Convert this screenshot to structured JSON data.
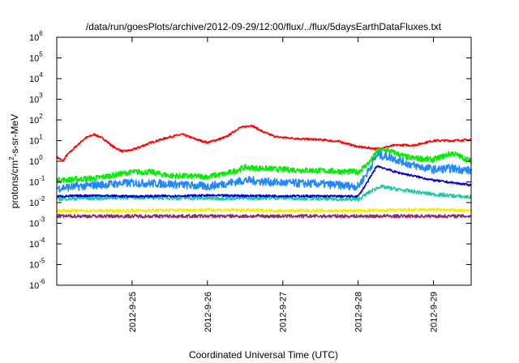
{
  "chart_data": {
    "type": "line",
    "title": "/data/run/goesPlots/archive/2012-09-29/12:00/flux/../flux/5daysEarthDataFluxes.txt",
    "xlabel": "Coordinated Universal Time (UTC)",
    "ylabel_parts": {
      "pre": "protons/cm",
      "sup": "2",
      "post": "-s-sr-MeV"
    },
    "y_scale": "log",
    "ylim": [
      1e-06,
      1000000.0
    ],
    "y_ticks": [
      {
        "base": "10",
        "exp": "-6",
        "value": 1e-06
      },
      {
        "base": "10",
        "exp": "-5",
        "value": 1e-05
      },
      {
        "base": "10",
        "exp": "-4",
        "value": 0.0001
      },
      {
        "base": "10",
        "exp": "-3",
        "value": 0.001
      },
      {
        "base": "10",
        "exp": "-2",
        "value": 0.01
      },
      {
        "base": "10",
        "exp": "-1",
        "value": 0.1
      },
      {
        "base": "10",
        "exp": "0",
        "value": 1
      },
      {
        "base": "10",
        "exp": "1",
        "value": 10
      },
      {
        "base": "10",
        "exp": "2",
        "value": 100
      },
      {
        "base": "10",
        "exp": "3",
        "value": 1000
      },
      {
        "base": "10",
        "exp": "4",
        "value": 10000
      },
      {
        "base": "10",
        "exp": "5",
        "value": 100000
      },
      {
        "base": "10",
        "exp": "6",
        "value": 1000000
      }
    ],
    "xlim": [
      "2012-09-24 00:00",
      "2012-09-29 12:00"
    ],
    "x_ticks": [
      "2012-9-25",
      "2012-9-26",
      "2012-9-27",
      "2012-9-28",
      "2012-9-29"
    ],
    "grid": false,
    "series": [
      {
        "color": "#ff0000",
        "noise": 0.05,
        "points": [
          [
            "2012-09-24 00:00",
            1.6
          ],
          [
            "2012-09-24 02:00",
            1.0
          ],
          [
            "2012-09-24 03:00",
            1.8
          ],
          [
            "2012-09-24 06:00",
            5
          ],
          [
            "2012-09-24 09:00",
            13
          ],
          [
            "2012-09-24 12:00",
            20
          ],
          [
            "2012-09-24 15:00",
            12
          ],
          [
            "2012-09-24 18:00",
            5
          ],
          [
            "2012-09-24 21:00",
            3
          ],
          [
            "2012-09-25 00:00",
            3.5
          ],
          [
            "2012-09-25 06:00",
            8
          ],
          [
            "2012-09-25 12:00",
            15
          ],
          [
            "2012-09-25 16:00",
            20
          ],
          [
            "2012-09-25 20:00",
            12
          ],
          [
            "2012-09-26 00:00",
            8
          ],
          [
            "2012-09-26 06:00",
            15
          ],
          [
            "2012-09-26 10:00",
            40
          ],
          [
            "2012-09-26 14:00",
            55
          ],
          [
            "2012-09-26 18:00",
            25
          ],
          [
            "2012-09-26 22:00",
            15
          ],
          [
            "2012-09-27 06:00",
            12
          ],
          [
            "2012-09-27 12:00",
            11
          ],
          [
            "2012-09-27 18:00",
            9
          ],
          [
            "2012-09-28 00:00",
            5
          ],
          [
            "2012-09-28 06:00",
            4
          ],
          [
            "2012-09-28 12:00",
            6
          ],
          [
            "2012-09-28 18:00",
            6
          ],
          [
            "2012-09-29 00:00",
            10
          ],
          [
            "2012-09-29 06:00",
            10
          ],
          [
            "2012-09-29 12:00",
            11
          ]
        ]
      },
      {
        "color": "#00ee00",
        "noise": 0.14,
        "points": [
          [
            "2012-09-24 00:00",
            0.12
          ],
          [
            "2012-09-24 12:00",
            0.15
          ],
          [
            "2012-09-25 00:00",
            0.3
          ],
          [
            "2012-09-25 06:00",
            0.3
          ],
          [
            "2012-09-25 12:00",
            0.2
          ],
          [
            "2012-09-26 00:00",
            0.18
          ],
          [
            "2012-09-26 06:00",
            0.25
          ],
          [
            "2012-09-26 12:00",
            0.5
          ],
          [
            "2012-09-27 00:00",
            0.4
          ],
          [
            "2012-09-27 12:00",
            0.35
          ],
          [
            "2012-09-28 00:00",
            0.3
          ],
          [
            "2012-09-28 04:00",
            1.0
          ],
          [
            "2012-09-28 06:00",
            3
          ],
          [
            "2012-09-28 09:00",
            3.5
          ],
          [
            "2012-09-28 16:00",
            1.5
          ],
          [
            "2012-09-29 00:00",
            1.2
          ],
          [
            "2012-09-29 06:00",
            2.5
          ],
          [
            "2012-09-29 12:00",
            1.0
          ]
        ]
      },
      {
        "color": "#2288ff",
        "noise": 0.2,
        "points": [
          [
            "2012-09-24 00:00",
            0.05
          ],
          [
            "2012-09-24 12:00",
            0.07
          ],
          [
            "2012-09-25 00:00",
            0.09
          ],
          [
            "2012-09-25 12:00",
            0.08
          ],
          [
            "2012-09-26 00:00",
            0.06
          ],
          [
            "2012-09-26 12:00",
            0.12
          ],
          [
            "2012-09-27 00:00",
            0.09
          ],
          [
            "2012-09-27 12:00",
            0.08
          ],
          [
            "2012-09-28 00:00",
            0.06
          ],
          [
            "2012-09-28 03:00",
            0.3
          ],
          [
            "2012-09-28 06:00",
            2.0
          ],
          [
            "2012-09-28 10:00",
            1.6
          ],
          [
            "2012-09-28 18:00",
            0.6
          ],
          [
            "2012-09-29 00:00",
            0.4
          ],
          [
            "2012-09-29 06:00",
            0.45
          ],
          [
            "2012-09-29 12:00",
            0.35
          ]
        ]
      },
      {
        "color": "#1fc8a8",
        "noise": 0.09,
        "points": [
          [
            "2012-09-24 00:00",
            0.015
          ],
          [
            "2012-09-25 00:00",
            0.018
          ],
          [
            "2012-09-26 00:00",
            0.016
          ],
          [
            "2012-09-27 00:00",
            0.017
          ],
          [
            "2012-09-28 00:00",
            0.014
          ],
          [
            "2012-09-28 04:00",
            0.035
          ],
          [
            "2012-09-28 07:00",
            0.06
          ],
          [
            "2012-09-28 14:00",
            0.04
          ],
          [
            "2012-09-29 00:00",
            0.025
          ],
          [
            "2012-09-29 12:00",
            0.018
          ]
        ]
      },
      {
        "color": "#0000cc",
        "noise": 0.05,
        "points": [
          [
            "2012-09-24 00:00",
            0.02
          ],
          [
            "2012-09-24 12:00",
            0.022
          ],
          [
            "2012-09-25 00:00",
            0.02
          ],
          [
            "2012-09-26 00:00",
            0.022
          ],
          [
            "2012-09-27 00:00",
            0.021
          ],
          [
            "2012-09-28 00:00",
            0.02
          ],
          [
            "2012-09-28 03:00",
            0.1
          ],
          [
            "2012-09-28 06:00",
            0.6
          ],
          [
            "2012-09-28 12:00",
            0.3
          ],
          [
            "2012-09-29 00:00",
            0.12
          ],
          [
            "2012-09-29 12:00",
            0.07
          ]
        ]
      },
      {
        "color": "#f2ee00",
        "noise": 0.08,
        "points": [
          [
            "2012-09-24 00:00",
            0.004
          ],
          [
            "2012-09-25 00:00",
            0.004
          ],
          [
            "2012-09-26 00:00",
            0.0045
          ],
          [
            "2012-09-27 00:00",
            0.004
          ],
          [
            "2012-09-28 00:00",
            0.004
          ],
          [
            "2012-09-29 00:00",
            0.0045
          ],
          [
            "2012-09-29 12:00",
            0.004
          ]
        ]
      },
      {
        "color": "#8b2a6a",
        "noise": 0.08,
        "points": [
          [
            "2012-09-24 00:00",
            0.0022
          ],
          [
            "2012-09-25 00:00",
            0.0022
          ],
          [
            "2012-09-26 00:00",
            0.0022
          ],
          [
            "2012-09-27 00:00",
            0.0022
          ],
          [
            "2012-09-28 00:00",
            0.0022
          ],
          [
            "2012-09-29 00:00",
            0.0022
          ],
          [
            "2012-09-29 12:00",
            0.0022
          ]
        ]
      }
    ]
  }
}
